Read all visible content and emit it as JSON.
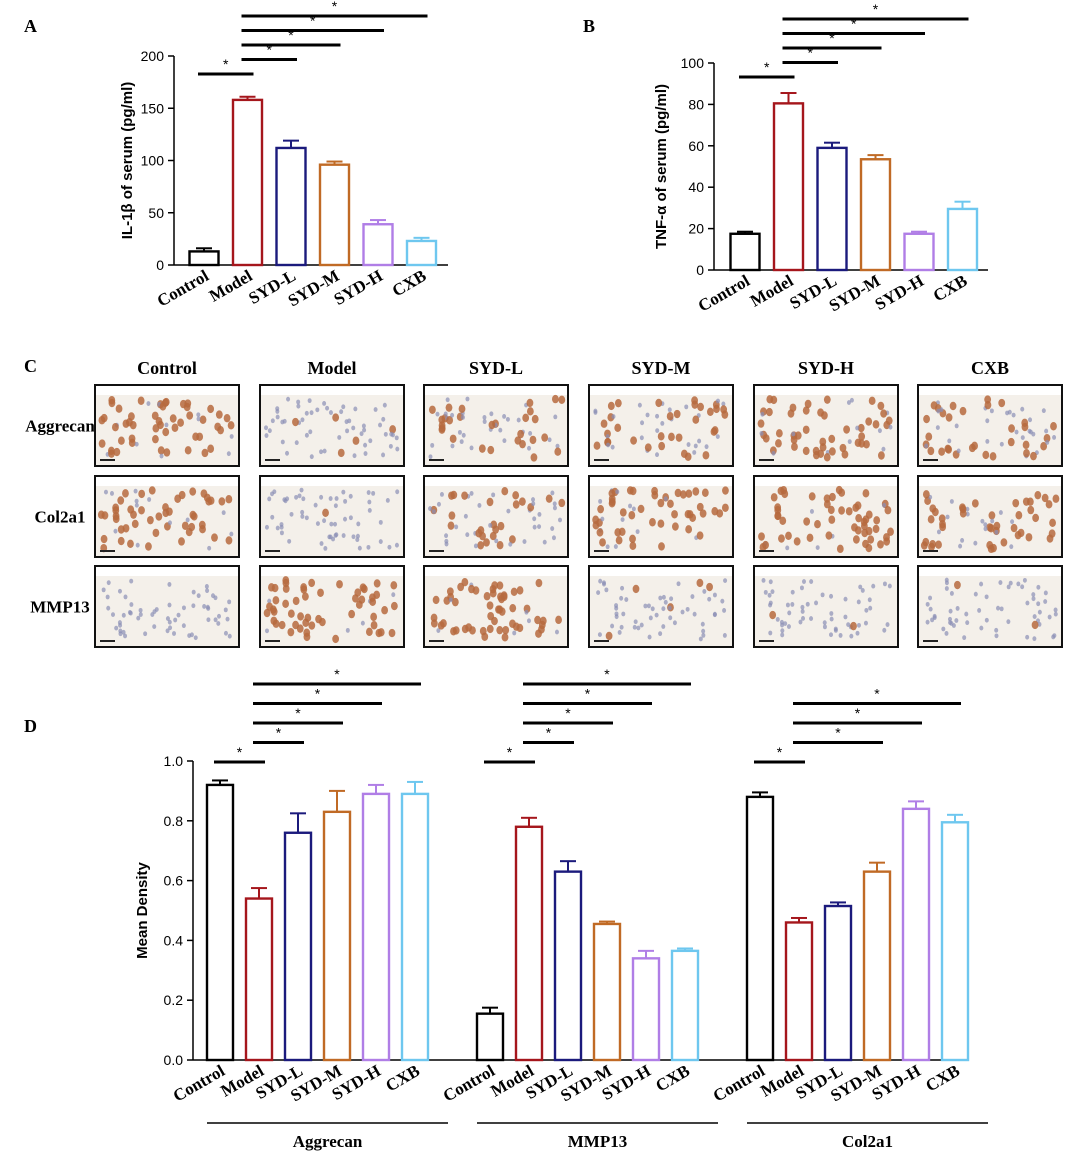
{
  "panel_letters": {
    "a": "A",
    "b": "B",
    "c": "C",
    "d": "D"
  },
  "colors": {
    "Control": "#000000",
    "Model": "#a5161c",
    "SYD-L": "#1b1a7c",
    "SYD-M": "#c06a25",
    "SYD-H": "#b07ee6",
    "CXB": "#6ec7ef"
  },
  "chart_data": [
    {
      "id": "A",
      "type": "bar",
      "title": "",
      "ylabel": "IL-1β of serum (pg/ml)",
      "xlabel": "",
      "ylim": [
        0,
        200
      ],
      "yticks": [
        0,
        50,
        100,
        150,
        200
      ],
      "categories": [
        "Control",
        "Model",
        "SYD-L",
        "SYD-M",
        "SYD-H",
        "CXB"
      ],
      "values": [
        13,
        158,
        112,
        96,
        39,
        23
      ],
      "errors": [
        3,
        3,
        7,
        3,
        4,
        3
      ],
      "sig_label": "*",
      "significance": [
        [
          0,
          1
        ],
        [
          1,
          2
        ],
        [
          1,
          3
        ],
        [
          1,
          4
        ],
        [
          1,
          5
        ]
      ]
    },
    {
      "id": "B",
      "type": "bar",
      "title": "",
      "ylabel": "TNF-α of serum (pg/ml)",
      "xlabel": "",
      "ylim": [
        0,
        100
      ],
      "yticks": [
        0,
        20,
        40,
        60,
        80,
        100
      ],
      "categories": [
        "Control",
        "Model",
        "SYD-L",
        "SYD-M",
        "SYD-H",
        "CXB"
      ],
      "values": [
        17.5,
        80.5,
        59,
        53.5,
        17.5,
        29.5
      ],
      "errors": [
        1,
        5,
        2.5,
        2,
        1,
        3.5
      ],
      "sig_label": "*",
      "significance": [
        [
          0,
          1
        ],
        [
          1,
          2
        ],
        [
          1,
          3
        ],
        [
          1,
          4
        ],
        [
          1,
          5
        ]
      ]
    },
    {
      "id": "D",
      "type": "bar",
      "title": "",
      "ylabel": "Mean Density",
      "xlabel": "",
      "ylim": [
        0,
        1.0
      ],
      "yticks": [
        "0.0",
        "0.2",
        "0.4",
        "0.6",
        "0.8",
        "1.0"
      ],
      "categories": [
        "Control",
        "Model",
        "SYD-L",
        "SYD-M",
        "SYD-H",
        "CXB"
      ],
      "sig_label": "*",
      "groups": [
        {
          "name": "Aggrecan",
          "values": [
            0.92,
            0.54,
            0.76,
            0.83,
            0.89,
            0.89
          ],
          "errors": [
            0.015,
            0.035,
            0.065,
            0.07,
            0.03,
            0.04
          ],
          "significance": [
            [
              0,
              1
            ],
            [
              1,
              2
            ],
            [
              1,
              3
            ],
            [
              1,
              4
            ],
            [
              1,
              5
            ]
          ]
        },
        {
          "name": "MMP13",
          "values": [
            0.155,
            0.78,
            0.63,
            0.455,
            0.34,
            0.365
          ],
          "errors": [
            0.02,
            0.03,
            0.035,
            0.008,
            0.025,
            0.008
          ],
          "significance": [
            [
              0,
              1
            ],
            [
              1,
              2
            ],
            [
              1,
              3
            ],
            [
              1,
              4
            ],
            [
              1,
              5
            ]
          ]
        },
        {
          "name": "Col2a1",
          "values": [
            0.88,
            0.46,
            0.515,
            0.63,
            0.84,
            0.795
          ],
          "errors": [
            0.015,
            0.015,
            0.012,
            0.03,
            0.025,
            0.025
          ],
          "significance": [
            [
              0,
              1
            ],
            [
              1,
              3
            ],
            [
              1,
              4
            ],
            [
              1,
              5
            ]
          ]
        }
      ]
    }
  ],
  "panel_c": {
    "columns": [
      "Control",
      "Model",
      "SYD-L",
      "SYD-M",
      "SYD-H",
      "CXB"
    ],
    "rows": [
      "Aggrecan",
      "Col2a1",
      "MMP13"
    ],
    "stain_density": [
      [
        0.8,
        0.05,
        0.4,
        0.55,
        0.8,
        0.55
      ],
      [
        0.8,
        0.05,
        0.5,
        0.8,
        0.85,
        0.7
      ],
      [
        0.0,
        0.85,
        0.9,
        0.05,
        0.05,
        0.05
      ]
    ]
  }
}
